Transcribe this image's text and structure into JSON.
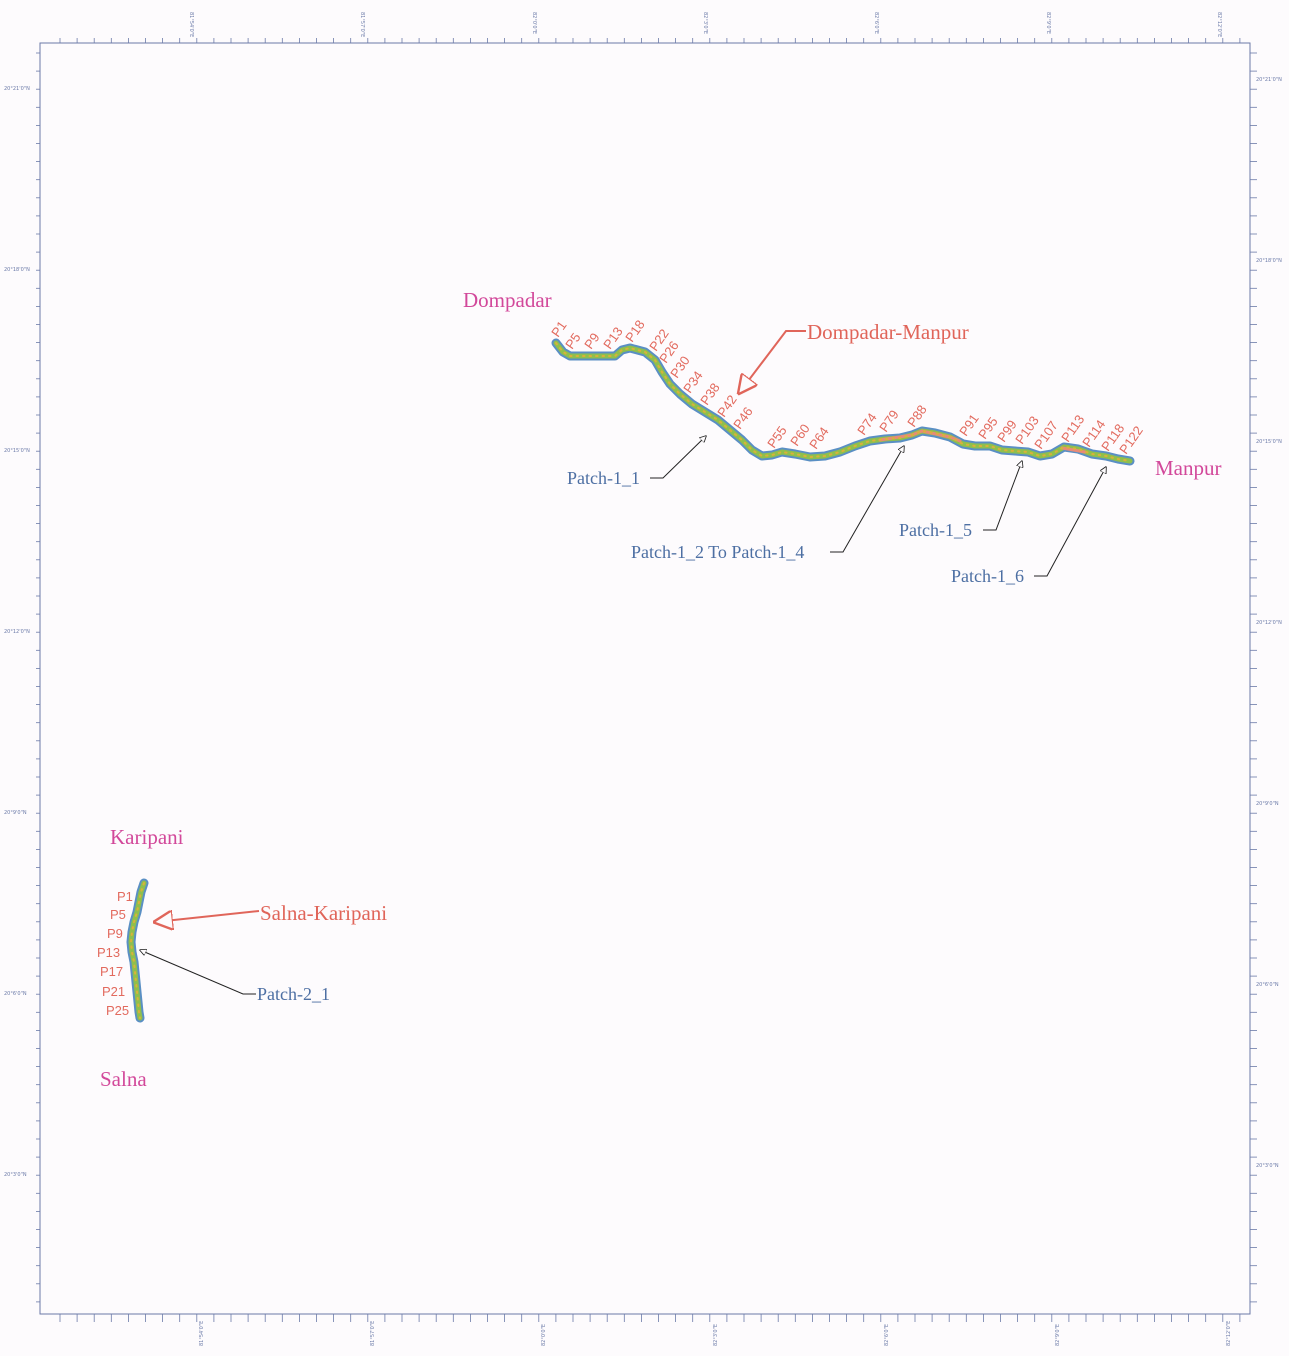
{
  "map": {
    "places": {
      "dompadar": "Dompadar",
      "manpur": "Manpur",
      "karipani": "Karipani",
      "salna": "Salna"
    },
    "routes": {
      "dompadar_manpur": "Dompadar-Manpur",
      "salna_karipani": "Salna-Karipani"
    },
    "patches": {
      "p1_1": "Patch-1_1",
      "p1_2_4": "Patch-1_2 To Patch-1_4",
      "p1_5": "Patch-1_5",
      "p1_6": "Patch-1_6",
      "p2_1": "Patch-2_1"
    },
    "route1_poles": [
      "P1",
      "P5",
      "P9",
      "P13",
      "P18",
      "P22",
      "P26",
      "P30",
      "P34",
      "P38",
      "P42",
      "P46",
      "P55",
      "P60",
      "P64",
      "P74",
      "P79",
      "P88",
      "P91",
      "P95",
      "P99",
      "P103",
      "P107",
      "P113",
      "P114",
      "P118",
      "P122"
    ],
    "route2_poles": [
      "P1",
      "P5",
      "P9",
      "P13",
      "P17",
      "P21",
      "P25"
    ],
    "lat_labels": [
      "20°21'0\"N",
      "20°18'0\"N",
      "20°15'0\"N",
      "20°12'0\"N",
      "20°9'0\"N",
      "20°6'0\"N",
      "20°3'0\"N"
    ],
    "lon_labels": [
      "81°54'0\"E",
      "81°57'0\"E",
      "82°0'0\"E",
      "82°3'0\"E",
      "82°6'0\"E",
      "82°9'0\"E",
      "82°12'0\"E"
    ],
    "colors": {
      "route_outer": "#5a8fc4",
      "route_inner": "#8fbf4d",
      "route_dots": "#d9b23a",
      "route_highlight": "#e88a78",
      "place": "#d2489a",
      "route_title": "#e0655a",
      "patch": "#4d6fa3",
      "pole": "#e26a5e",
      "frame": "#6b7aa8"
    }
  }
}
